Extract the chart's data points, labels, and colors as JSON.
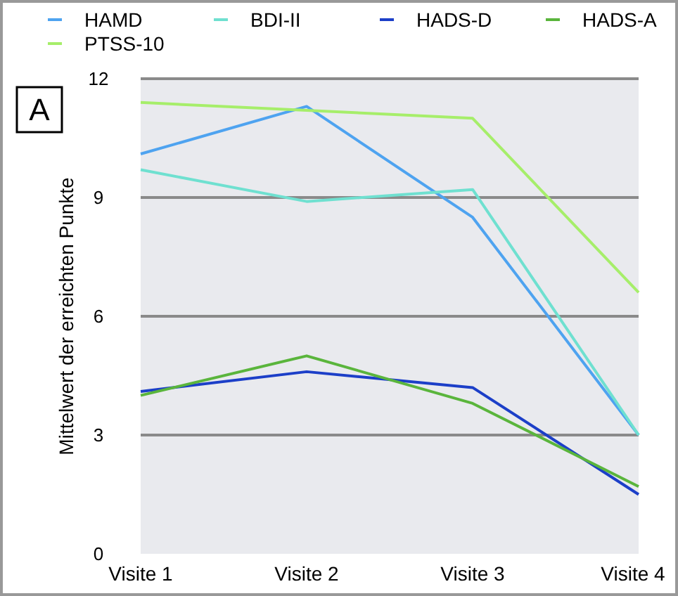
{
  "chart_data": {
    "type": "line",
    "ylabel": "Mittelwert der erreichten Punkte",
    "annotations": [
      "A"
    ],
    "categories": [
      "Visite 1",
      "Visite 2",
      "Visite 3",
      "Visite 4"
    ],
    "series": [
      {
        "name": "HAMD",
        "color": "#4ea3f0",
        "values": [
          10.1,
          11.3,
          8.5,
          3.0
        ]
      },
      {
        "name": "BDI-II",
        "color": "#6fe0d0",
        "values": [
          9.7,
          8.9,
          9.2,
          3.0
        ]
      },
      {
        "name": "HADS-D",
        "color": "#1c3fc8",
        "values": [
          4.1,
          4.6,
          4.2,
          1.5
        ]
      },
      {
        "name": "HADS-A",
        "color": "#5ab53c",
        "values": [
          4.0,
          5.0,
          3.8,
          1.7
        ]
      },
      {
        "name": "PTSS-10",
        "color": "#a6ee6a",
        "values": [
          11.4,
          11.2,
          11.0,
          6.6
        ]
      }
    ],
    "ylim": [
      0,
      12
    ],
    "yticks": [
      0,
      3,
      6,
      9,
      12
    ],
    "grid": "y",
    "legend": "top",
    "marker": "none",
    "line_style": "solid"
  }
}
